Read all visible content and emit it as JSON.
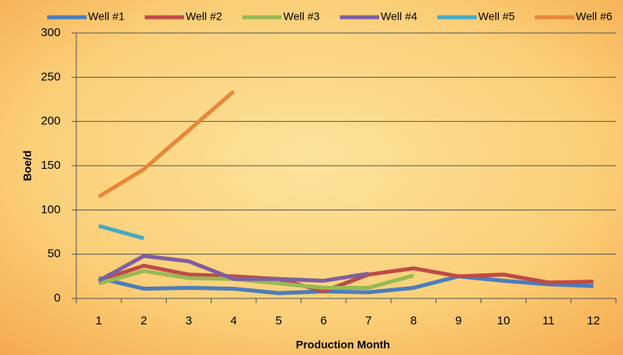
{
  "chart_data": {
    "type": "line",
    "xlabel": "Production Month",
    "ylabel": "Boe/d",
    "categories": [
      1,
      2,
      3,
      4,
      5,
      6,
      7,
      8,
      9,
      10,
      11,
      12
    ],
    "series": [
      {
        "name": "Well #1",
        "color": "#4a7ebb",
        "values": [
          23,
          11,
          12,
          11,
          6,
          8,
          7,
          12,
          25,
          20,
          16,
          14
        ]
      },
      {
        "name": "Well #2",
        "color": "#be4b48",
        "values": [
          20,
          37,
          27,
          25,
          22,
          8,
          27,
          34,
          25,
          27,
          18,
          19
        ]
      },
      {
        "name": "Well #3",
        "color": "#98b954",
        "values": [
          17,
          31,
          23,
          22,
          17,
          12,
          12,
          26,
          null,
          null,
          null,
          null
        ]
      },
      {
        "name": "Well #4",
        "color": "#7d60a0",
        "values": [
          20,
          48,
          42,
          22,
          22,
          20,
          28,
          null,
          null,
          null,
          null,
          null
        ]
      },
      {
        "name": "Well #5",
        "color": "#46aac5",
        "values": [
          82,
          68,
          null,
          null,
          null,
          null,
          null,
          null,
          null,
          null,
          null,
          null
        ]
      },
      {
        "name": "Well #6",
        "color": "#e8873a",
        "values": [
          115,
          146,
          190,
          234,
          null,
          null,
          null,
          null,
          null,
          null,
          null,
          null
        ]
      }
    ],
    "ylim": [
      0,
      300
    ],
    "yticks": [
      0,
      50,
      100,
      150,
      200,
      250,
      300
    ],
    "grid": true,
    "legend": "top"
  }
}
